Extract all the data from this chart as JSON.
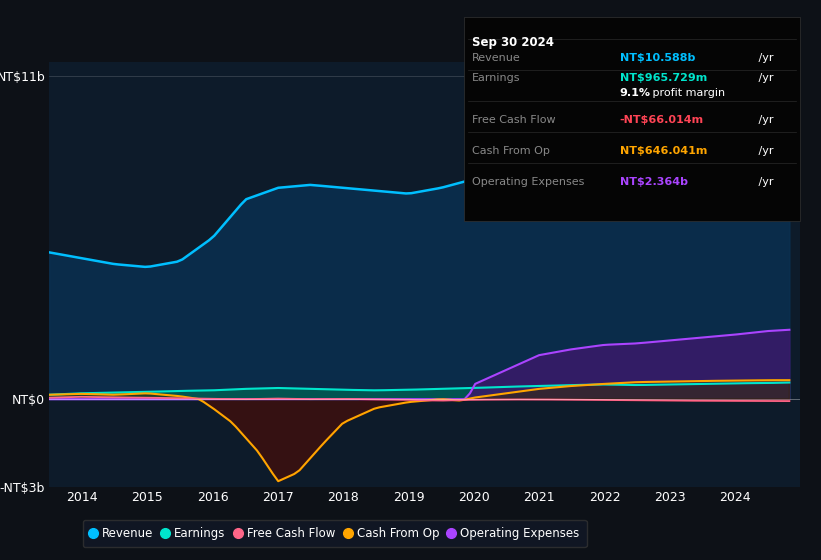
{
  "background_color": "#0d1117",
  "plot_bg_color": "#0d1b2a",
  "colors": {
    "revenue": "#00bfff",
    "earnings": "#00e5cc",
    "free_cash_flow": "#ff6688",
    "cash_from_op": "#ffa500",
    "operating_expenses": "#aa44ff",
    "revenue_fill": "#0a3050",
    "earnings_fill": "#006655",
    "operating_expenses_fill": "#3a1a6a",
    "cash_from_op_neg_fill": "#3a1010",
    "earnings_pos_fill": "#405a60",
    "zero_line": "#aaaaaa"
  },
  "info_box": {
    "date": "Sep 30 2024",
    "revenue_label": "Revenue",
    "revenue_value": "NT$10.588b",
    "revenue_color": "#00bfff",
    "earnings_label": "Earnings",
    "earnings_value": "NT$965.729m",
    "earnings_color": "#00e5cc",
    "profit_margin": "9.1%",
    "fcf_label": "Free Cash Flow",
    "fcf_value": "-NT$66.014m",
    "fcf_color": "#ff4455",
    "cashop_label": "Cash From Op",
    "cashop_value": "NT$646.041m",
    "cashop_color": "#ffa500",
    "opex_label": "Operating Expenses",
    "opex_value": "NT$2.364b",
    "opex_color": "#aa44ff"
  },
  "legend": [
    {
      "label": "Revenue",
      "color": "#00bfff"
    },
    {
      "label": "Earnings",
      "color": "#00e5cc"
    },
    {
      "label": "Free Cash Flow",
      "color": "#ff6688"
    },
    {
      "label": "Cash From Op",
      "color": "#ffa500"
    },
    {
      "label": "Operating Expenses",
      "color": "#aa44ff"
    }
  ]
}
